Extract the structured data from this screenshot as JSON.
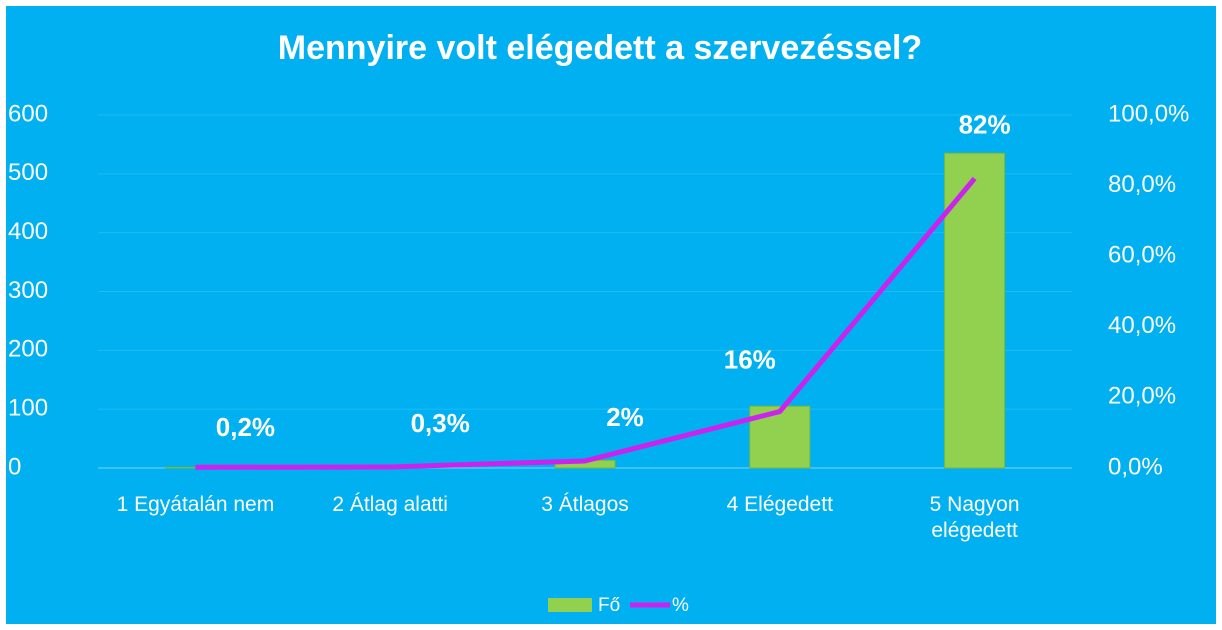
{
  "chart_data": {
    "type": "bar_line",
    "title": "Mennyire volt elégedett a szervezéssel?",
    "categories": [
      "1 Egyátalán nem",
      "2 Átlag alatti",
      "3 Átlagos",
      "4 Elégedett",
      "5 Nagyon elégedett"
    ],
    "series": [
      {
        "name": "Fő",
        "type": "bar",
        "color": "#92d050",
        "values": [
          1,
          2,
          13,
          105,
          535
        ]
      },
      {
        "name": "%",
        "type": "line",
        "axis": "y2",
        "color": "#cc22ee",
        "values": [
          0.2,
          0.3,
          2,
          16,
          82
        ],
        "value_labels": [
          "0,2%",
          "0,3%",
          "2%",
          "16%",
          "82%"
        ]
      }
    ],
    "ylim": [
      0,
      600
    ],
    "yticks": [
      0,
      100,
      200,
      300,
      400,
      500,
      600
    ],
    "y2lim": [
      0,
      100
    ],
    "y2ticks": [
      {
        "value": 0,
        "label": "0,0%"
      },
      {
        "value": 20,
        "label": "20,0%"
      },
      {
        "value": 40,
        "label": "40,0%"
      },
      {
        "value": 60,
        "label": "60,0%"
      },
      {
        "value": 80,
        "label": "80,0%"
      },
      {
        "value": 100,
        "label": "100,0%"
      }
    ],
    "grid": true,
    "legend": "bottom"
  }
}
